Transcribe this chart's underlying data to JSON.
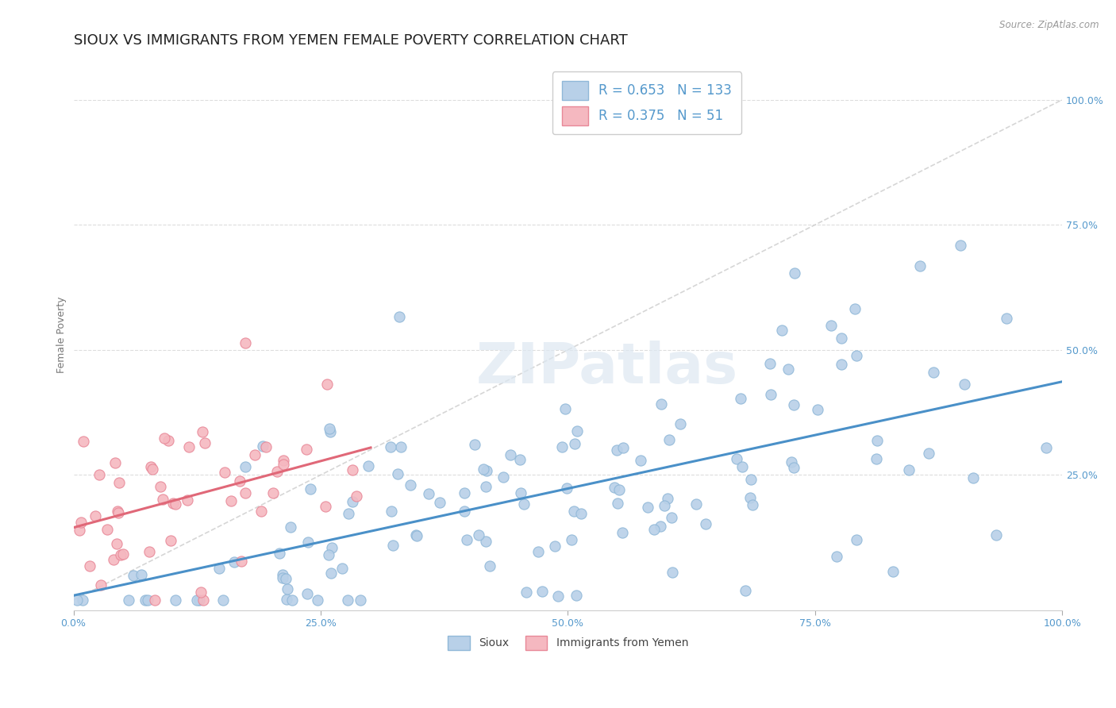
{
  "title": "SIOUX VS IMMIGRANTS FROM YEMEN FEMALE POVERTY CORRELATION CHART",
  "source": "Source: ZipAtlas.com",
  "ylabel": "Female Poverty",
  "xlim": [
    0.0,
    1.0
  ],
  "ylim": [
    -0.02,
    1.08
  ],
  "xtick_labels": [
    "0.0%",
    "25.0%",
    "50.0%",
    "75.0%",
    "100.0%"
  ],
  "xtick_positions": [
    0.0,
    0.25,
    0.5,
    0.75,
    1.0
  ],
  "ytick_labels": [
    "25.0%",
    "50.0%",
    "75.0%",
    "100.0%"
  ],
  "ytick_positions": [
    0.25,
    0.5,
    0.75,
    1.0
  ],
  "sioux_color": "#b8d0e8",
  "sioux_edge": "#90b8d8",
  "yemen_color": "#f5b8c0",
  "yemen_edge": "#e88898",
  "regression_line_color_sioux": "#4a90c8",
  "regression_line_color_yemen": "#e06878",
  "diagonal_color": "#cccccc",
  "R_sioux": 0.653,
  "N_sioux": 133,
  "R_yemen": 0.375,
  "N_yemen": 51,
  "background_color": "#ffffff",
  "grid_color": "#dddddd",
  "title_fontsize": 13,
  "axis_label_fontsize": 9,
  "tick_fontsize": 9,
  "legend_fontsize": 12,
  "marker_size": 90,
  "sioux_label": "Sioux",
  "yemen_label": "Immigrants from Yemen",
  "watermark": "ZIPatlas",
  "tick_color": "#5599cc"
}
